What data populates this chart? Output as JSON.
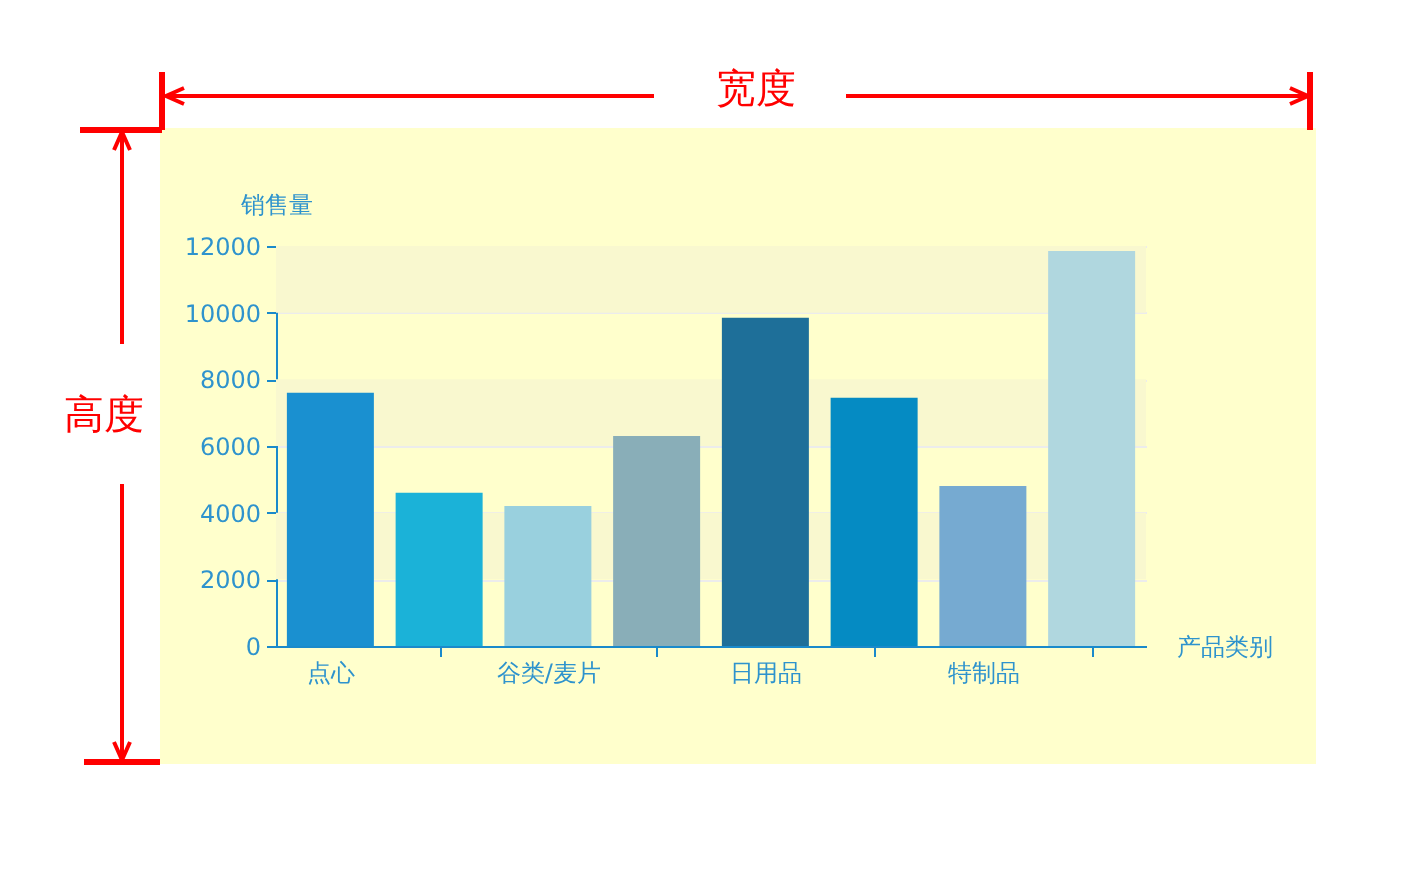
{
  "chart_data": {
    "type": "bar",
    "categories": [
      "点心",
      null,
      "谷类/麦片",
      null,
      "日用品",
      null,
      "特制品",
      null
    ],
    "values": [
      7600,
      4600,
      4200,
      6300,
      9850,
      7450,
      4800,
      11850
    ],
    "colors": [
      "#1a90d0",
      "#1bb2d8",
      "#99d0de",
      "#89aeb8",
      "#1e6f99",
      "#058bc3",
      "#76aad1",
      "#b0d7df"
    ],
    "xlabel": "产品类别",
    "ylabel": "销售量",
    "ylim": [
      0,
      12000
    ],
    "yticks": [
      0,
      2000,
      4000,
      6000,
      8000,
      10000,
      12000
    ],
    "grid": "y",
    "bands": [
      {
        "axis": "y",
        "from": 10000,
        "to": 12000,
        "color": "#f9f8cf"
      },
      {
        "axis": "y",
        "from": 6000,
        "to": 8000,
        "color": "#f9f8cf"
      },
      {
        "axis": "y",
        "from": 2000,
        "to": 4000,
        "color": "#f9f8cf"
      }
    ],
    "annotations": [
      "宽度",
      "高度"
    ]
  }
}
